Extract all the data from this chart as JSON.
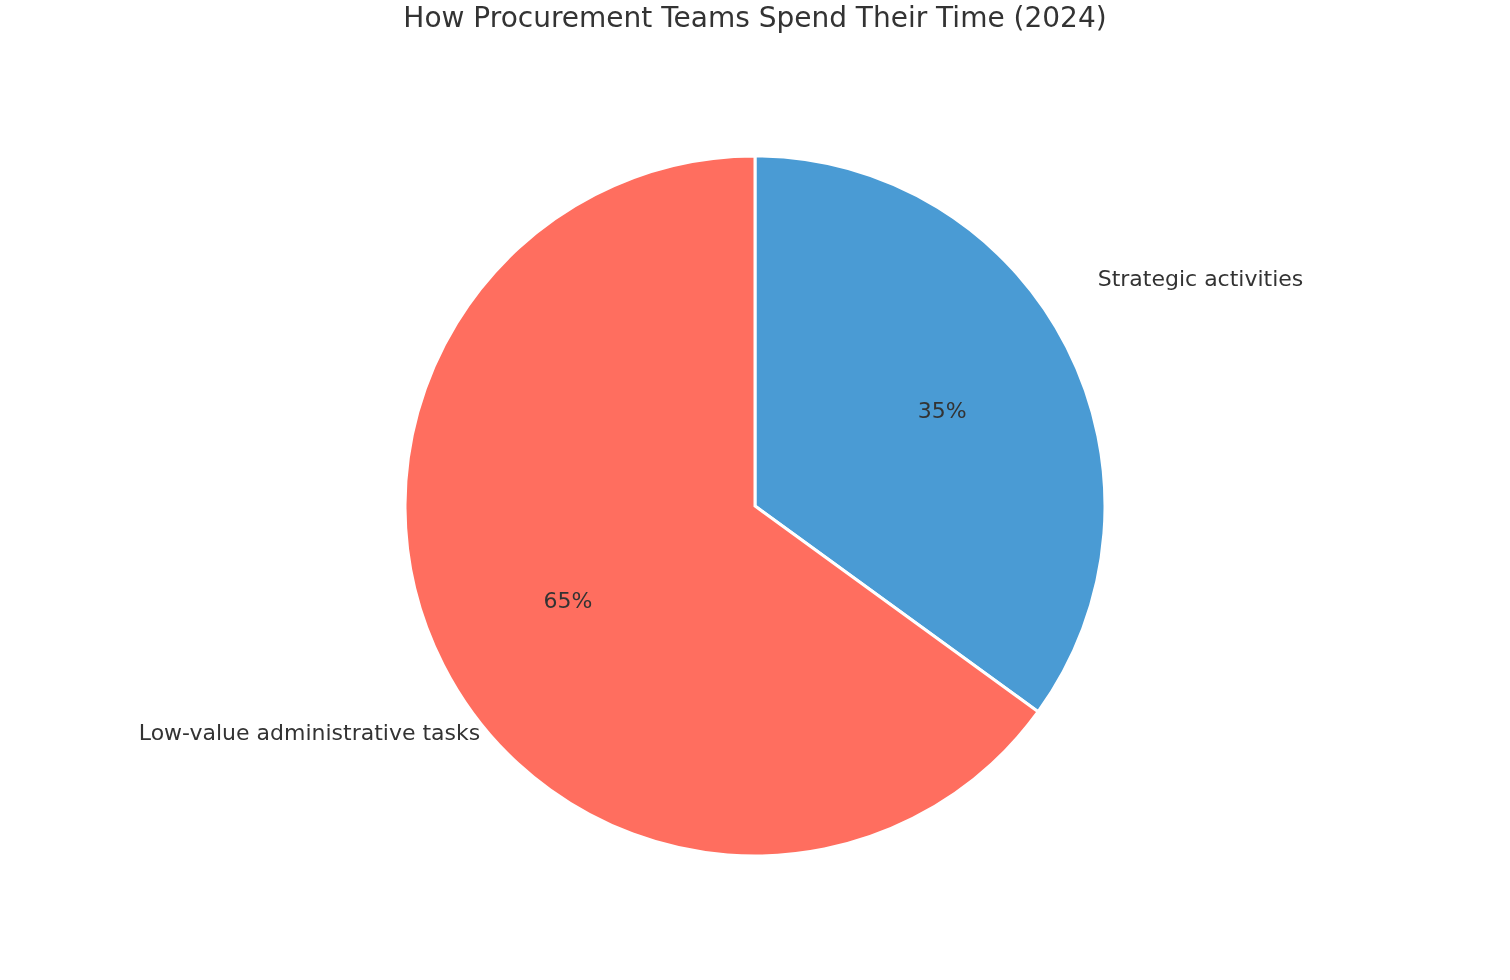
{
  "chart_data": {
    "type": "pie",
    "title": "How Procurement Teams Spend Their Time (2024)",
    "categories": [
      "Strategic activities",
      "Low-value administrative tasks"
    ],
    "values": [
      35,
      65
    ],
    "colors": [
      "#4a9bd4",
      "#ff6e5f"
    ],
    "value_labels": [
      "35%",
      "65%"
    ]
  }
}
